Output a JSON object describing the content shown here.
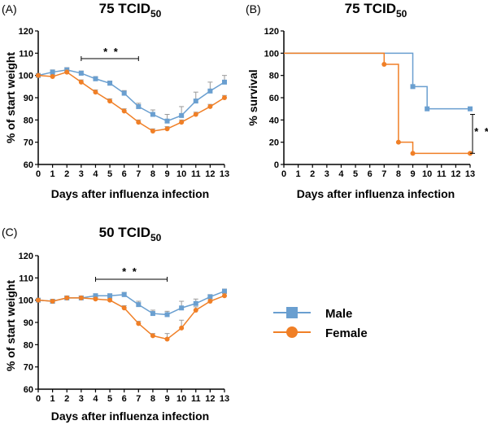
{
  "colors": {
    "male": "#6a9fd0",
    "female": "#f07f26",
    "axis": "#000000",
    "error": "#9a9a9a"
  },
  "legend": {
    "items": [
      {
        "name": "Male",
        "marker": "square"
      },
      {
        "name": "Female",
        "marker": "circle"
      }
    ]
  },
  "chart_data": [
    {
      "panel_label": "(A)",
      "title_main": "75 TCID",
      "title_sub": "50",
      "type": "line",
      "xlabel": "Days after influenza infection",
      "ylabel": "% of start weight",
      "xlim": [
        0,
        13
      ],
      "ylim": [
        60,
        120
      ],
      "xticks": [
        "0",
        "1",
        "2",
        "3",
        "4",
        "5",
        "6",
        "7",
        "8",
        "9",
        "10",
        "11",
        "12",
        "13"
      ],
      "yticks": [
        "60",
        "70",
        "80",
        "90",
        "100",
        "110",
        "120"
      ],
      "x": [
        0,
        1,
        2,
        3,
        4,
        5,
        6,
        7,
        8,
        9,
        10,
        11,
        12,
        13
      ],
      "series": [
        {
          "name": "Male",
          "values": [
            100,
            101.5,
            102.5,
            101,
            98.5,
            96.5,
            92,
            86,
            82.5,
            79.5,
            82,
            88.5,
            93,
            97
          ],
          "errors": [
            0.5,
            1,
            1,
            1,
            1,
            1,
            1.2,
            1.5,
            2,
            3,
            4,
            4,
            4,
            3
          ]
        },
        {
          "name": "Female",
          "values": [
            100,
            99.5,
            101.5,
            97,
            92.5,
            88.5,
            84,
            79,
            75,
            76,
            79,
            82.5,
            86,
            90
          ],
          "errors": [
            0.5,
            0.8,
            1,
            1,
            1,
            1,
            1,
            1,
            1,
            1,
            1,
            1,
            1,
            1
          ]
        }
      ],
      "significance": {
        "label": "* *",
        "from": 3,
        "to": 7
      }
    },
    {
      "panel_label": "(B)",
      "title_main": "75 TCID",
      "title_sub": "50",
      "type": "step",
      "xlabel": "Days after influenza infection",
      "ylabel": "% survival",
      "xlim": [
        0,
        13
      ],
      "ylim": [
        0,
        120
      ],
      "xticks": [
        "0",
        "1",
        "2",
        "3",
        "4",
        "5",
        "6",
        "7",
        "8",
        "9",
        "10",
        "11",
        "12",
        "13"
      ],
      "yticks": [
        "0",
        "20",
        "40",
        "60",
        "80",
        "100",
        "120"
      ],
      "series": [
        {
          "name": "Male",
          "points": [
            [
              0,
              100
            ],
            [
              9,
              100
            ],
            [
              9,
              70
            ],
            [
              10,
              70
            ],
            [
              10,
              50
            ],
            [
              13,
              50
            ]
          ],
          "markers": [
            [
              9,
              70
            ],
            [
              10,
              50
            ],
            [
              13,
              50
            ]
          ]
        },
        {
          "name": "Female",
          "points": [
            [
              0,
              100
            ],
            [
              7,
              100
            ],
            [
              7,
              90
            ],
            [
              8,
              90
            ],
            [
              8,
              20
            ],
            [
              9,
              20
            ],
            [
              9,
              10
            ],
            [
              13,
              10
            ]
          ],
          "markers": [
            [
              7,
              90
            ],
            [
              8,
              20
            ],
            [
              9,
              10
            ],
            [
              13,
              10
            ]
          ]
        }
      ],
      "significance": {
        "label": "* *",
        "from_y": 10,
        "to_y": 45
      }
    },
    {
      "panel_label": "(C)",
      "title_main": "50 TCID",
      "title_sub": "50",
      "type": "line",
      "xlabel": "Days after influenza infection",
      "ylabel": "% of start weight",
      "xlim": [
        0,
        13
      ],
      "ylim": [
        60,
        120
      ],
      "xticks": [
        "0",
        "1",
        "2",
        "3",
        "4",
        "5",
        "6",
        "7",
        "8",
        "9",
        "10",
        "11",
        "12",
        "13"
      ],
      "yticks": [
        "60",
        "70",
        "80",
        "90",
        "100",
        "110",
        "120"
      ],
      "x": [
        0,
        1,
        2,
        3,
        4,
        5,
        6,
        7,
        8,
        9,
        10,
        11,
        12,
        13
      ],
      "series": [
        {
          "name": "Male",
          "values": [
            100,
            99.5,
            101,
            101,
            102,
            102,
            102.5,
            98,
            94,
            93.5,
            96.5,
            98.5,
            101.5,
            104
          ],
          "errors": [
            0.5,
            0.8,
            0.8,
            0.8,
            0.8,
            0.8,
            1,
            1.5,
            1.5,
            1.5,
            3,
            2,
            1,
            1
          ]
        },
        {
          "name": "Female",
          "values": [
            100,
            99.5,
            101,
            101,
            100.5,
            100,
            96.5,
            89.5,
            84,
            82.5,
            87.5,
            95.5,
            99.5,
            102
          ],
          "errors": [
            0.5,
            0.8,
            0.8,
            0.8,
            0.8,
            0.8,
            1,
            1,
            1,
            2.5,
            3.5,
            1.5,
            1,
            1
          ]
        }
      ],
      "significance": {
        "label": "* *",
        "from": 4,
        "to": 9
      }
    }
  ]
}
